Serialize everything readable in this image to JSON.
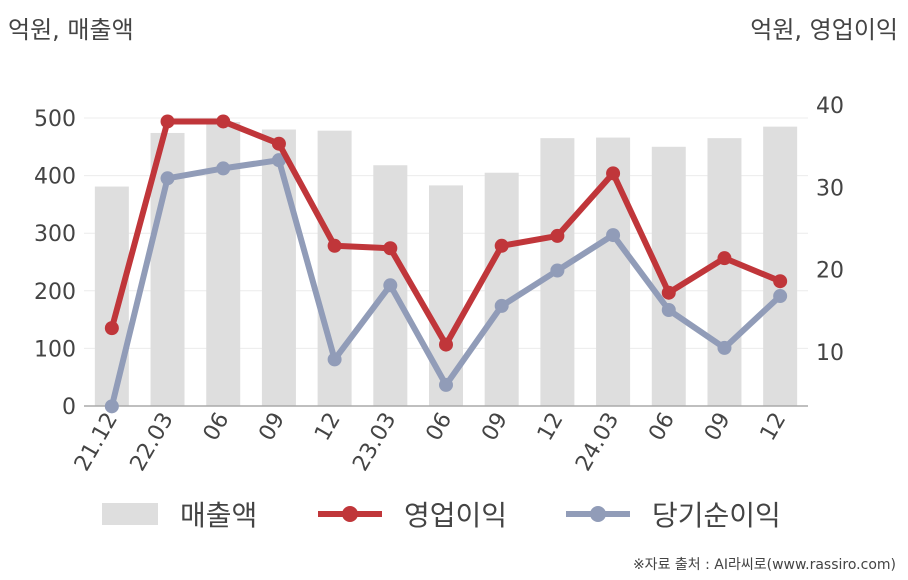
{
  "header": {
    "left_unit": "억원, 매출액",
    "right_unit": "억원, 영업이익"
  },
  "legend": {
    "revenue": "매출액",
    "operating": "영업이익",
    "net": "당기순이익"
  },
  "source": "※자료 출처 : AI라씨로(www.rassiro.com)",
  "colors": {
    "revenue": "#dedede",
    "operating": "#c0363a",
    "net": "#919cb8"
  },
  "chart_data": {
    "type": "bar",
    "categories": [
      "21.12",
      "22.03",
      "06",
      "09",
      "12",
      "23.03",
      "06",
      "09",
      "12",
      "24.03",
      "06",
      "09",
      "12"
    ],
    "series": [
      {
        "name": "매출액",
        "type": "bar",
        "axis": "left",
        "values": [
          381,
          474,
          493,
          480,
          478,
          418,
          383,
          405,
          465,
          466,
          450,
          465,
          485
        ]
      },
      {
        "name": "영업이익",
        "type": "line",
        "axis": "right",
        "values": [
          12.9,
          38.0,
          38.0,
          35.3,
          22.9,
          22.6,
          10.9,
          22.9,
          24.1,
          31.7,
          17.2,
          21.4,
          18.6
        ]
      },
      {
        "name": "당기순이익",
        "type": "line",
        "axis": "right",
        "values": [
          3.4,
          31.1,
          32.3,
          33.3,
          9.1,
          18.1,
          6.0,
          15.6,
          19.9,
          24.2,
          15.1,
          10.5,
          16.8
        ]
      }
    ],
    "y_left": {
      "ticks": [
        0,
        100,
        200,
        300,
        400,
        500
      ],
      "range": [
        0,
        500
      ]
    },
    "y_right": {
      "ticks": [
        10,
        20,
        30,
        40
      ],
      "range": [
        3.4,
        38.6
      ]
    },
    "grid": true,
    "legend_position": "bottom"
  }
}
